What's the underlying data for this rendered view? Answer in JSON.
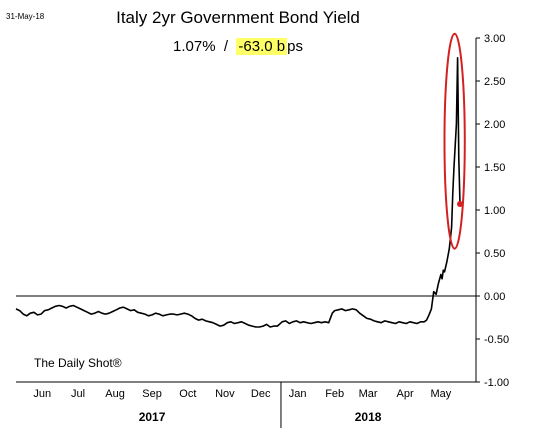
{
  "date_stamp": "31-May-18",
  "source": "The Daily Shot®",
  "colors": {
    "line": "#000000",
    "annotation": "#d42020",
    "highlight": "#ffff66",
    "zero_line": "#000000"
  },
  "chart_data": {
    "type": "line",
    "title": "Italy 2yr Government Bond Yield",
    "subtitle": {
      "level": "1.07%",
      "separator": "/",
      "change": "-63.0 b",
      "change_suffix": "ps"
    },
    "xlabel": "",
    "ylabel": "",
    "x_range": [
      "2017-05-24",
      "2018-05-31"
    ],
    "ylim": [
      -1.0,
      3.0
    ],
    "y_ticks": [
      "3.00",
      "2.50",
      "2.00",
      "1.50",
      "1.00",
      "0.50",
      "0.00",
      "-0.50",
      "-1.00"
    ],
    "y_tick_values": [
      3.0,
      2.5,
      2.0,
      1.5,
      1.0,
      0.5,
      0.0,
      -0.5,
      -1.0
    ],
    "month_ticks": [
      {
        "label": "Jun",
        "date": "2017-06-15"
      },
      {
        "label": "Jul",
        "date": "2017-07-15"
      },
      {
        "label": "Aug",
        "date": "2017-08-15"
      },
      {
        "label": "Sep",
        "date": "2017-09-15"
      },
      {
        "label": "Oct",
        "date": "2017-10-15"
      },
      {
        "label": "Nov",
        "date": "2017-11-15"
      },
      {
        "label": "Dec",
        "date": "2017-12-15"
      },
      {
        "label": "Jan",
        "date": "2018-01-15"
      },
      {
        "label": "Feb",
        "date": "2018-02-15"
      },
      {
        "label": "Mar",
        "date": "2018-03-15"
      },
      {
        "label": "Apr",
        "date": "2018-04-15"
      },
      {
        "label": "May",
        "date": "2018-05-15"
      }
    ],
    "year_ticks": [
      {
        "label": "2017",
        "date": "2017-09-15"
      },
      {
        "label": "2018",
        "date": "2018-03-15"
      }
    ],
    "year_boundary": "2018-01-01",
    "zero_line": true,
    "grid": false,
    "series": [
      {
        "values": [
          [
            "2017-05-24",
            -0.15
          ],
          [
            "2017-05-27",
            -0.17
          ],
          [
            "2017-05-30",
            -0.21
          ],
          [
            "2017-06-02",
            -0.23
          ],
          [
            "2017-06-05",
            -0.2
          ],
          [
            "2017-06-08",
            -0.19
          ],
          [
            "2017-06-11",
            -0.22
          ],
          [
            "2017-06-14",
            -0.21
          ],
          [
            "2017-06-17",
            -0.17
          ],
          [
            "2017-06-20",
            -0.16
          ],
          [
            "2017-06-23",
            -0.14
          ],
          [
            "2017-06-26",
            -0.12
          ],
          [
            "2017-06-29",
            -0.11
          ],
          [
            "2017-07-02",
            -0.12
          ],
          [
            "2017-07-05",
            -0.14
          ],
          [
            "2017-07-08",
            -0.12
          ],
          [
            "2017-07-11",
            -0.11
          ],
          [
            "2017-07-14",
            -0.13
          ],
          [
            "2017-07-17",
            -0.15
          ],
          [
            "2017-07-20",
            -0.17
          ],
          [
            "2017-07-23",
            -0.19
          ],
          [
            "2017-07-26",
            -0.21
          ],
          [
            "2017-07-29",
            -0.2
          ],
          [
            "2017-08-01",
            -0.18
          ],
          [
            "2017-08-04",
            -0.2
          ],
          [
            "2017-08-07",
            -0.21
          ],
          [
            "2017-08-10",
            -0.2
          ],
          [
            "2017-08-13",
            -0.18
          ],
          [
            "2017-08-16",
            -0.16
          ],
          [
            "2017-08-19",
            -0.14
          ],
          [
            "2017-08-22",
            -0.13
          ],
          [
            "2017-08-25",
            -0.15
          ],
          [
            "2017-08-28",
            -0.17
          ],
          [
            "2017-08-31",
            -0.16
          ],
          [
            "2017-09-03",
            -0.19
          ],
          [
            "2017-09-06",
            -0.2
          ],
          [
            "2017-09-09",
            -0.21
          ],
          [
            "2017-09-12",
            -0.23
          ],
          [
            "2017-09-15",
            -0.22
          ],
          [
            "2017-09-18",
            -0.2
          ],
          [
            "2017-09-21",
            -0.21
          ],
          [
            "2017-09-24",
            -0.23
          ],
          [
            "2017-09-27",
            -0.22
          ],
          [
            "2017-09-30",
            -0.21
          ],
          [
            "2017-10-03",
            -0.21
          ],
          [
            "2017-10-06",
            -0.22
          ],
          [
            "2017-10-09",
            -0.21
          ],
          [
            "2017-10-12",
            -0.2
          ],
          [
            "2017-10-15",
            -0.21
          ],
          [
            "2017-10-18",
            -0.23
          ],
          [
            "2017-10-21",
            -0.26
          ],
          [
            "2017-10-24",
            -0.28
          ],
          [
            "2017-10-27",
            -0.27
          ],
          [
            "2017-10-30",
            -0.29
          ],
          [
            "2017-11-02",
            -0.3
          ],
          [
            "2017-11-05",
            -0.31
          ],
          [
            "2017-11-08",
            -0.33
          ],
          [
            "2017-11-11",
            -0.35
          ],
          [
            "2017-11-14",
            -0.34
          ],
          [
            "2017-11-17",
            -0.31
          ],
          [
            "2017-11-20",
            -0.3
          ],
          [
            "2017-11-23",
            -0.32
          ],
          [
            "2017-11-26",
            -0.31
          ],
          [
            "2017-11-29",
            -0.3
          ],
          [
            "2017-12-02",
            -0.32
          ],
          [
            "2017-12-05",
            -0.34
          ],
          [
            "2017-12-08",
            -0.35
          ],
          [
            "2017-12-11",
            -0.36
          ],
          [
            "2017-12-14",
            -0.36
          ],
          [
            "2017-12-17",
            -0.35
          ],
          [
            "2017-12-20",
            -0.33
          ],
          [
            "2017-12-23",
            -0.36
          ],
          [
            "2017-12-26",
            -0.35
          ],
          [
            "2017-12-29",
            -0.35
          ],
          [
            "2018-01-02",
            -0.3
          ],
          [
            "2018-01-05",
            -0.29
          ],
          [
            "2018-01-08",
            -0.32
          ],
          [
            "2018-01-11",
            -0.3
          ],
          [
            "2018-01-14",
            -0.29
          ],
          [
            "2018-01-17",
            -0.31
          ],
          [
            "2018-01-20",
            -0.3
          ],
          [
            "2018-01-23",
            -0.31
          ],
          [
            "2018-01-26",
            -0.32
          ],
          [
            "2018-01-29",
            -0.31
          ],
          [
            "2018-02-01",
            -0.3
          ],
          [
            "2018-02-04",
            -0.31
          ],
          [
            "2018-02-07",
            -0.3
          ],
          [
            "2018-02-10",
            -0.31
          ],
          [
            "2018-02-13",
            -0.2
          ],
          [
            "2018-02-15",
            -0.17
          ],
          [
            "2018-02-18",
            -0.16
          ],
          [
            "2018-02-21",
            -0.15
          ],
          [
            "2018-02-24",
            -0.17
          ],
          [
            "2018-02-27",
            -0.16
          ],
          [
            "2018-03-02",
            -0.15
          ],
          [
            "2018-03-05",
            -0.16
          ],
          [
            "2018-03-08",
            -0.2
          ],
          [
            "2018-03-11",
            -0.23
          ],
          [
            "2018-03-14",
            -0.26
          ],
          [
            "2018-03-17",
            -0.27
          ],
          [
            "2018-03-20",
            -0.29
          ],
          [
            "2018-03-23",
            -0.3
          ],
          [
            "2018-03-26",
            -0.31
          ],
          [
            "2018-03-29",
            -0.29
          ],
          [
            "2018-04-01",
            -0.3
          ],
          [
            "2018-04-04",
            -0.31
          ],
          [
            "2018-04-07",
            -0.32
          ],
          [
            "2018-04-10",
            -0.3
          ],
          [
            "2018-04-13",
            -0.31
          ],
          [
            "2018-04-16",
            -0.32
          ],
          [
            "2018-04-19",
            -0.3
          ],
          [
            "2018-04-22",
            -0.31
          ],
          [
            "2018-04-25",
            -0.32
          ],
          [
            "2018-04-28",
            -0.3
          ],
          [
            "2018-05-01",
            -0.3
          ],
          [
            "2018-05-03",
            -0.28
          ],
          [
            "2018-05-05",
            -0.22
          ],
          [
            "2018-05-07",
            -0.15
          ],
          [
            "2018-05-09",
            0.05
          ],
          [
            "2018-05-11",
            0.02
          ],
          [
            "2018-05-13",
            0.15
          ],
          [
            "2018-05-15",
            0.25
          ],
          [
            "2018-05-16",
            0.2
          ],
          [
            "2018-05-17",
            0.3
          ],
          [
            "2018-05-18",
            0.28
          ],
          [
            "2018-05-20",
            0.4
          ],
          [
            "2018-05-22",
            0.55
          ],
          [
            "2018-05-24",
            0.8
          ],
          [
            "2018-05-25",
            1.2
          ],
          [
            "2018-05-26",
            1.5
          ],
          [
            "2018-05-28",
            2.0
          ],
          [
            "2018-05-29",
            2.77
          ],
          [
            "2018-05-30",
            1.6
          ],
          [
            "2018-05-31",
            1.07
          ]
        ]
      }
    ],
    "last_point": {
      "date": "2018-05-31",
      "value": 1.07
    },
    "highlight_ellipse": {
      "date_from": "2018-05-18",
      "date_to": "2018-06-04",
      "value_from": 0.55,
      "value_to": 3.05
    }
  }
}
